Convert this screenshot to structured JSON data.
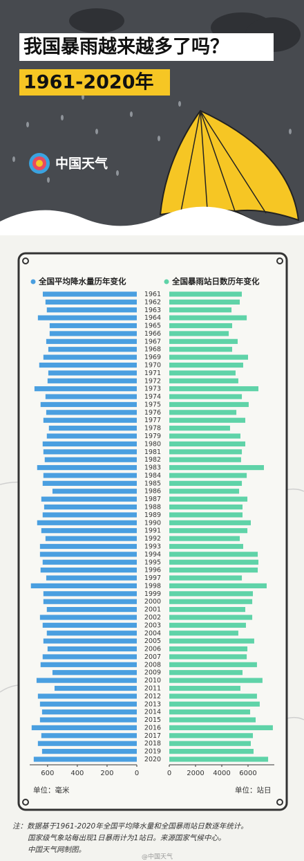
{
  "header": {
    "title": "我国暴雨越来越多了吗？",
    "subtitle": "1961-2020年",
    "logo": "中国天气"
  },
  "chart_data": [
    {
      "type": "bar",
      "orientation": "horizontal",
      "x_reversed": true,
      "legend": "全国平均降水量历年变化",
      "color": "#4a9fe0",
      "xlabel": "单位：毫米",
      "categories": [
        "1961",
        "1962",
        "1963",
        "1964",
        "1965",
        "1966",
        "1967",
        "1968",
        "1969",
        "1970",
        "1971",
        "1972",
        "1973",
        "1974",
        "1975",
        "1976",
        "1977",
        "1978",
        "1979",
        "1980",
        "1981",
        "1982",
        "1983",
        "1984",
        "1985",
        "1986",
        "1987",
        "1988",
        "1989",
        "1990",
        "1991",
        "1992",
        "1993",
        "1994",
        "1995",
        "1996",
        "1997",
        "1998",
        "1999",
        "2000",
        "2001",
        "2002",
        "2003",
        "2004",
        "2005",
        "2006",
        "2007",
        "2008",
        "2009",
        "2010",
        "2011",
        "2012",
        "2013",
        "2014",
        "2015",
        "2016",
        "2017",
        "2018",
        "2019",
        "2020"
      ],
      "values": [
        632,
        614,
        605,
        665,
        586,
        586,
        609,
        595,
        628,
        656,
        595,
        600,
        688,
        614,
        647,
        609,
        628,
        591,
        605,
        633,
        628,
        619,
        670,
        628,
        633,
        567,
        642,
        623,
        633,
        670,
        642,
        614,
        651,
        651,
        633,
        647,
        609,
        712,
        628,
        628,
        605,
        651,
        633,
        605,
        628,
        600,
        633,
        647,
        567,
        674,
        553,
        665,
        651,
        637,
        651,
        707,
        642,
        665,
        637,
        693
      ],
      "xlim": [
        0,
        720
      ],
      "xticks": [
        0,
        200,
        400,
        600
      ]
    },
    {
      "type": "bar",
      "orientation": "horizontal",
      "x_reversed": false,
      "legend": "全国暴雨站日数历年变化",
      "color": "#5fd3a8",
      "xlabel": "单位：站日",
      "values": [
        5526,
        5370,
        4740,
        5900,
        4790,
        4530,
        5210,
        4790,
        6000,
        5630,
        5050,
        5260,
        6790,
        5530,
        6050,
        5110,
        5790,
        4630,
        5420,
        5790,
        5530,
        5470,
        7210,
        5900,
        5530,
        5320,
        5950,
        5580,
        5580,
        6210,
        5950,
        5370,
        5630,
        6740,
        6790,
        6740,
        5530,
        7420,
        6370,
        6320,
        5790,
        6320,
        5840,
        5260,
        6470,
        5950,
        5900,
        6680,
        5580,
        7100,
        5420,
        6680,
        6890,
        6160,
        6580,
        7890,
        6370,
        6210,
        6420,
        7530
      ],
      "xlim": [
        0,
        8000
      ],
      "xticks": [
        0,
        2000,
        4000,
        6000
      ]
    }
  ],
  "notes": [
    "注：数据基于1961-2020年全国平均降水量和全国暴雨站日数逐年统计。",
    "国家级气象站每出现1日暴雨计为1站日。来源国家气候中心。",
    "中国天气网制图。"
  ],
  "watermark": "@中国天气"
}
